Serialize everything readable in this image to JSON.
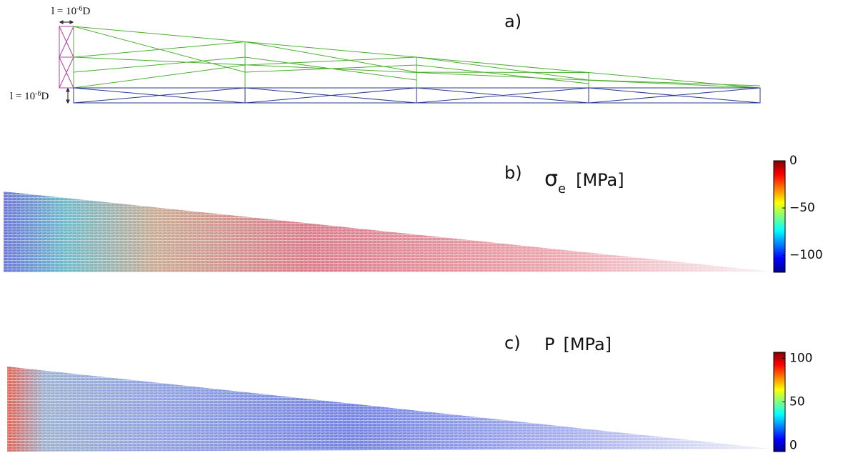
{
  "panels": [
    {
      "label": "a)",
      "dimensions": [
        {
          "text": "l = 10",
          "sup": "-6",
          "suffix": "D"
        },
        {
          "text": "l = 10",
          "sup": "-6",
          "suffix": "D"
        }
      ]
    },
    {
      "label": "b)",
      "symbol": "σ",
      "subscript": "e",
      "unit": "[MPa]",
      "colorbar": {
        "lim": [
          -118,
          0
        ],
        "ticks": [
          {
            "value": 0,
            "label": "0"
          },
          {
            "value": -50,
            "label": "−50"
          },
          {
            "value": -100,
            "label": "−100"
          }
        ]
      }
    },
    {
      "label": "c)",
      "symbol": "P",
      "unit": "[MPa]",
      "colorbar": {
        "lim": [
          -7,
          107
        ],
        "ticks": [
          100,
          50,
          0
        ]
      }
    }
  ]
}
